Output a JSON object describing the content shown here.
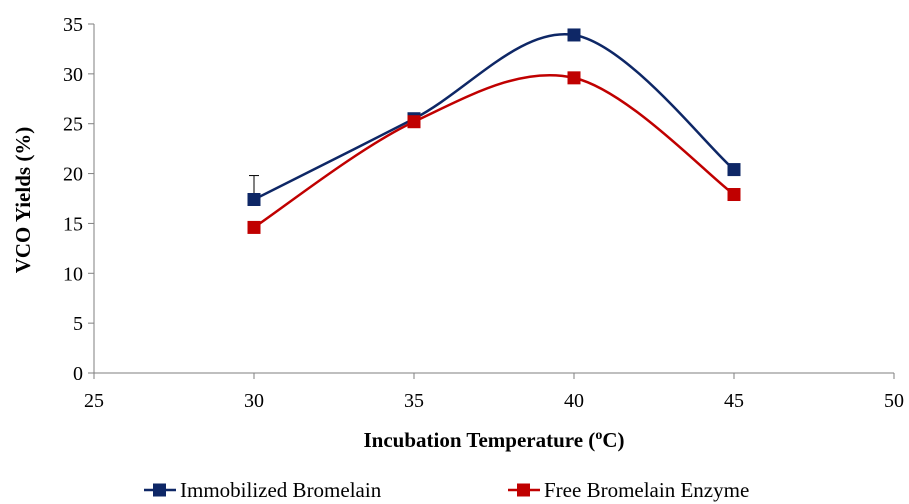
{
  "chart_data": {
    "type": "scatter",
    "title": "",
    "xlabel": "Incubation Temperature (",
    "xlabel_sup": "o",
    "xlabel_suffix": "C)",
    "ylabel": "VCO Yields (%)",
    "xlim": [
      25,
      50
    ],
    "ylim": [
      0,
      35
    ],
    "xticks": [
      25,
      30,
      35,
      40,
      45,
      50
    ],
    "yticks": [
      0,
      5,
      10,
      15,
      20,
      25,
      30,
      35
    ],
    "grid": false,
    "legend_position": "bottom",
    "smoothed_lines": true,
    "marker": "square",
    "series": [
      {
        "name": "Immobilized Bromelain",
        "color": "#0e2766",
        "x": [
          30,
          35,
          40,
          45
        ],
        "y": [
          17.4,
          25.5,
          33.9,
          20.4
        ],
        "error_bar": {
          "x": 30,
          "upper": 2.4
        }
      },
      {
        "name": "Free Bromelain Enzyme",
        "color": "#c00000",
        "x": [
          30,
          35,
          40,
          45
        ],
        "y": [
          14.6,
          25.2,
          29.6,
          17.9
        ]
      }
    ]
  }
}
